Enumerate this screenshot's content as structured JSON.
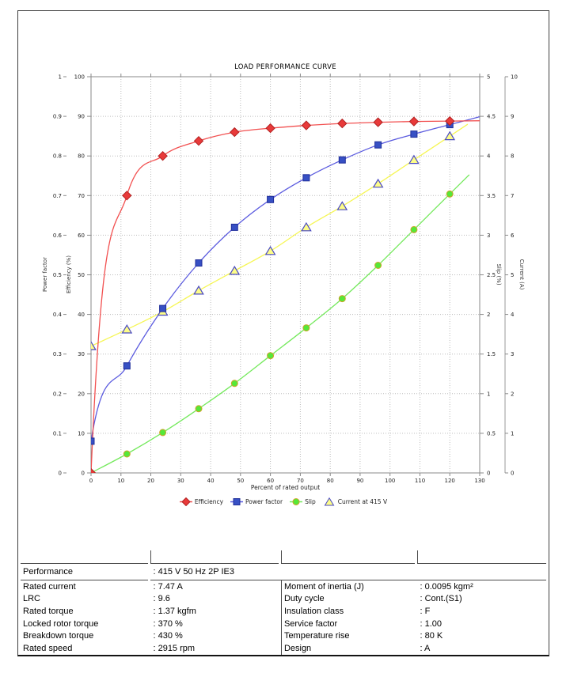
{
  "chart_data": {
    "type": "line",
    "title": "LOAD PERFORMANCE CURVE",
    "xlabel": "Percent of rated output",
    "x_range": [
      0,
      130
    ],
    "x_tick_step": 10,
    "grid": true,
    "legend_position": "bottom",
    "x": [
      0,
      12,
      24,
      36,
      48,
      60,
      72,
      84,
      96,
      108,
      120
    ],
    "axes": {
      "power_factor": {
        "label": "Power factor",
        "range": [
          0,
          1
        ],
        "tick_step": 0.1,
        "side": "left-outer"
      },
      "efficiency": {
        "label": "Efficiency (%)",
        "range": [
          0,
          100
        ],
        "tick_step": 10,
        "side": "left"
      },
      "slip": {
        "label": "Slip (%)",
        "range": [
          0,
          5
        ],
        "tick_step": 0.5,
        "side": "right"
      },
      "current": {
        "label": "Current (A)",
        "range": [
          0,
          10
        ],
        "tick_step": 1,
        "side": "right-outer"
      }
    },
    "series": [
      {
        "name": "Efficiency",
        "axis": "efficiency",
        "marker": "diamond",
        "line_color": "#f25050",
        "fill": "#e83a3a",
        "stroke": "#b22020",
        "steep_start": true,
        "line_end_x": 130,
        "values": [
          0,
          70,
          80,
          83.8,
          86,
          87,
          87.7,
          88.2,
          88.5,
          88.7,
          88.8
        ]
      },
      {
        "name": "Power factor",
        "axis": "power_factor",
        "marker": "square",
        "line_color": "#5b5bdf",
        "fill": "#3750c4",
        "stroke": "#1f2e9a",
        "steep_start": true,
        "line_end_x": 130,
        "values": [
          0.08,
          0.27,
          0.415,
          0.53,
          0.62,
          0.69,
          0.745,
          0.79,
          0.828,
          0.855,
          0.879
        ]
      },
      {
        "name": "Slip",
        "axis": "slip",
        "marker": "circle",
        "line_color": "#74e95c",
        "fill": "#55e838",
        "stroke": "#cfa32a",
        "steep_start": false,
        "line_end_x": 126.5,
        "values": [
          0,
          0.24,
          0.51,
          0.81,
          1.13,
          1.48,
          1.83,
          2.2,
          2.62,
          3.07,
          3.52
        ]
      },
      {
        "name": "Current at 415 V",
        "axis": "current",
        "marker": "triangle",
        "line_color": "#f6f655",
        "fill": "#fdfd88",
        "stroke": "#4a4ac2",
        "steep_start": false,
        "line_end_x": 126,
        "values": [
          3.2,
          3.62,
          4.07,
          4.6,
          5.1,
          5.6,
          6.2,
          6.73,
          7.3,
          7.9,
          8.5
        ]
      }
    ]
  },
  "spec_table": {
    "performance_row": {
      "label": "Performance",
      "value": ": 415 V 50 Hz 2P IE3"
    },
    "left": [
      {
        "label": "Rated current",
        "value": ": 7.47 A"
      },
      {
        "label": "LRC",
        "value": ": 9.6"
      },
      {
        "label": "Rated torque",
        "value": ": 1.37 kgfm"
      },
      {
        "label": "Locked rotor torque",
        "value": ": 370 %"
      },
      {
        "label": "Breakdown torque",
        "value": ": 430 %"
      },
      {
        "label": "Rated speed",
        "value": ": 2915 rpm"
      }
    ],
    "right": [
      {
        "label": "Moment of inertia (J)",
        "value": ": 0.0095 kgm²"
      },
      {
        "label": "Duty cycle",
        "value": ": Cont.(S1)"
      },
      {
        "label": "Insulation class",
        "value": ": F"
      },
      {
        "label": "Service factor",
        "value": ": 1.00"
      },
      {
        "label": "Temperature rise",
        "value": ": 80 K"
      },
      {
        "label": "Design",
        "value": ": A"
      }
    ]
  }
}
